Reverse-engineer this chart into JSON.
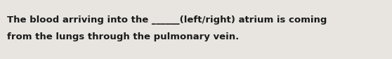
{
  "line1": "The blood arriving into the ______(left/right) atrium is coming",
  "line2": "from the lungs through the pulmonary vein.",
  "background_color": "#e8e5e0",
  "text_color": "#1a1a1a",
  "font_size": 9.5,
  "fig_width": 5.58,
  "fig_height": 0.84,
  "dpi": 100
}
